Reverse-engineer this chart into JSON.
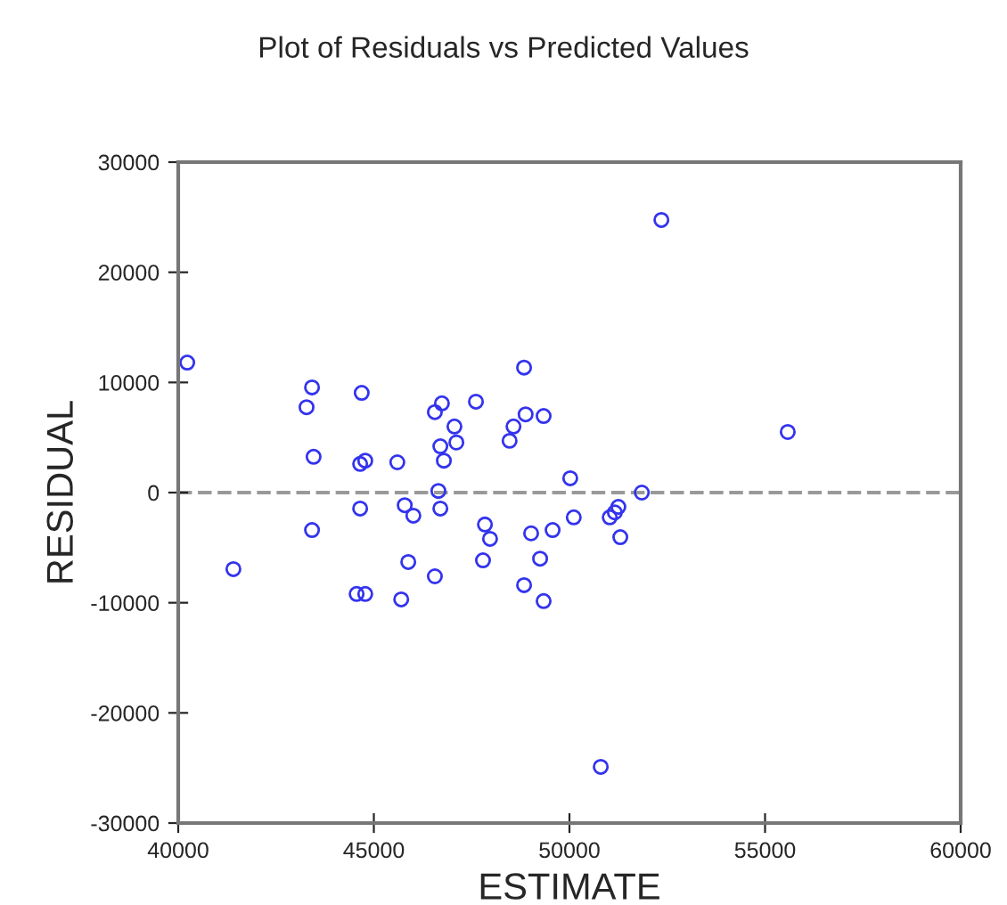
{
  "chart_data": {
    "type": "scatter",
    "title": "Plot of Residuals vs Predicted Values",
    "xlabel": "ESTIMATE",
    "ylabel": "RESIDUAL",
    "x": [
      40230,
      43420,
      43280,
      43460,
      43420,
      41410,
      44690,
      44650,
      44780,
      44650,
      44560,
      44780,
      45600,
      45700,
      45880,
      45790,
      46010,
      46560,
      46560,
      46740,
      47060,
      47610,
      46700,
      47110,
      46790,
      46650,
      46700,
      47840,
      47970,
      47790,
      48840,
      48570,
      48470,
      48880,
      49340,
      49020,
      49570,
      49250,
      48840,
      49340,
      50020,
      50110,
      52350,
      55580,
      51030,
      51250,
      51160,
      51850,
      51300,
      50800
    ],
    "series": [
      {
        "color": "#3333ee",
        "values": [
          11800,
          9550,
          7750,
          3250,
          -3400,
          -6950,
          9050,
          2600,
          2900,
          -1450,
          -9200,
          -9200,
          2750,
          -9700,
          -6300,
          -1150,
          -2100,
          -7600,
          7300,
          8100,
          6000,
          8250,
          4200,
          4550,
          2900,
          150,
          -1450,
          -2900,
          -4200,
          -6150,
          11350,
          6000,
          4700,
          7100,
          6950,
          -3700,
          -3400,
          -6000,
          -8400,
          -9850,
          1300,
          -2250,
          24750,
          5500,
          -2250,
          -1300,
          -1800,
          0,
          -4050,
          -24900
        ]
      }
    ],
    "xlim": [
      40000,
      60000
    ],
    "xticks": [
      40000,
      45000,
      50000,
      55000,
      60000
    ],
    "ylim": [
      -30000,
      30000
    ],
    "yticks": [
      -30000,
      -20000,
      -10000,
      0,
      10000,
      20000,
      30000
    ],
    "ref_lines": [
      {
        "axis": "y",
        "value": 0,
        "color": "#999999",
        "line_style": "dashed"
      }
    ],
    "marker": "circle",
    "grid": false,
    "legend": false
  }
}
